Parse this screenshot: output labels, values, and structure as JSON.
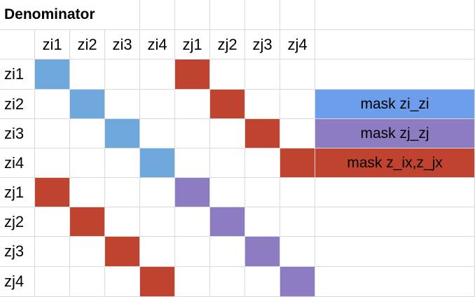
{
  "title": "Denominator",
  "columns": [
    "zi1",
    "zi2",
    "zi3",
    "zi4",
    "zj1",
    "zj2",
    "zj3",
    "zj4"
  ],
  "rows": [
    "zi1",
    "zi2",
    "zi3",
    "zi4",
    "zj1",
    "zj2",
    "zj3",
    "zj4"
  ],
  "colors": {
    "zi_zi": "#6fa8dc",
    "zj_zj": "#8e7cc3",
    "cross": "#c0432f"
  },
  "filled_cells": [
    {
      "row": 0,
      "col": 0,
      "mask": "zi_zi"
    },
    {
      "row": 1,
      "col": 1,
      "mask": "zi_zi"
    },
    {
      "row": 2,
      "col": 2,
      "mask": "zi_zi"
    },
    {
      "row": 3,
      "col": 3,
      "mask": "zi_zi"
    },
    {
      "row": 4,
      "col": 4,
      "mask": "zj_zj"
    },
    {
      "row": 5,
      "col": 5,
      "mask": "zj_zj"
    },
    {
      "row": 6,
      "col": 6,
      "mask": "zj_zj"
    },
    {
      "row": 7,
      "col": 7,
      "mask": "zj_zj"
    },
    {
      "row": 0,
      "col": 4,
      "mask": "cross"
    },
    {
      "row": 1,
      "col": 5,
      "mask": "cross"
    },
    {
      "row": 2,
      "col": 6,
      "mask": "cross"
    },
    {
      "row": 3,
      "col": 7,
      "mask": "cross"
    },
    {
      "row": 4,
      "col": 0,
      "mask": "cross"
    },
    {
      "row": 5,
      "col": 1,
      "mask": "cross"
    },
    {
      "row": 6,
      "col": 2,
      "mask": "cross"
    },
    {
      "row": 7,
      "col": 3,
      "mask": "cross"
    }
  ],
  "legend": [
    {
      "label": "mask zi_zi",
      "color": "#6d9eeb"
    },
    {
      "label": "mask zj_zj",
      "color": "#8e7cc3"
    },
    {
      "label": "mask z_ix,z_jx",
      "color": "#c0432f"
    }
  ]
}
